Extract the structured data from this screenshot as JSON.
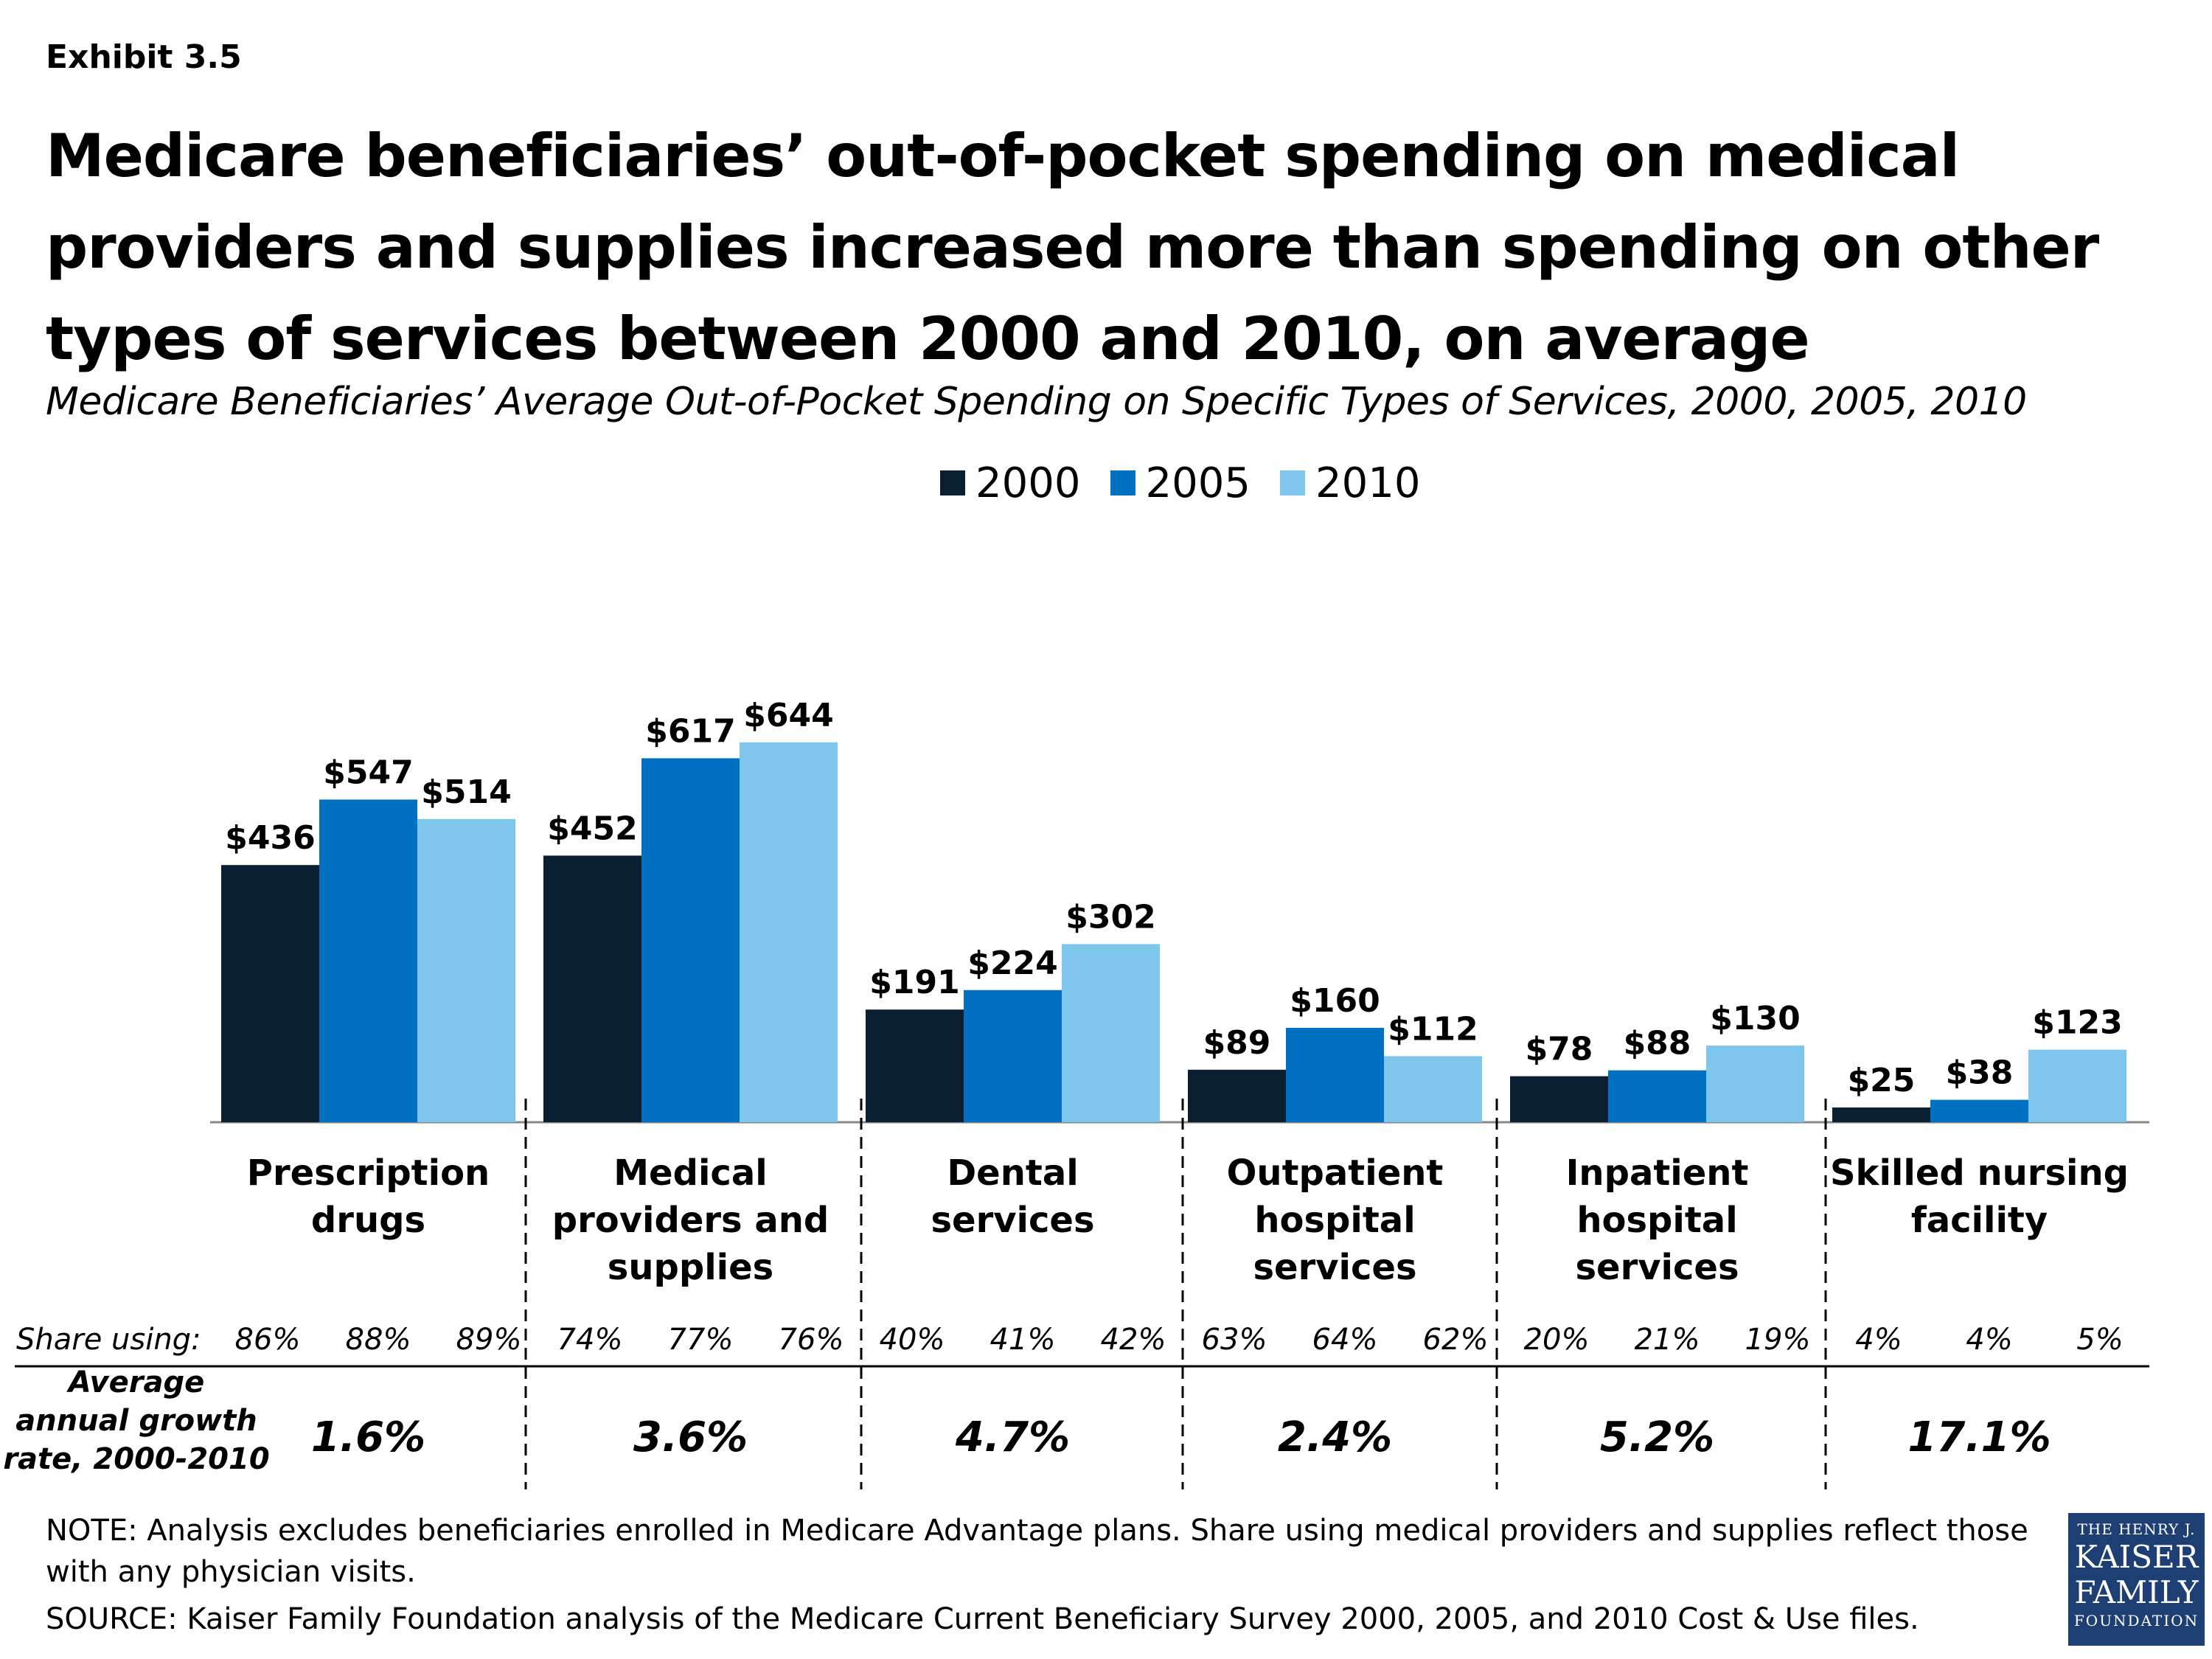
{
  "exhibit": "Exhibit 3.5",
  "title": "Medicare beneficiaries’ out-of-pocket spending on medical providers and supplies increased more than spending on other types of services between 2000 and 2010, on average",
  "subtitle": "Medicare Beneficiaries’ Average Out-of-Pocket Spending on Specific Types of Services, 2000, 2005, 2010",
  "colors": {
    "2000": "#0b1f33",
    "2005": "#0070c0",
    "2010": "#7fc6ec"
  },
  "chart_data": {
    "type": "bar",
    "categories": [
      "Prescription drugs",
      "Medical providers and supplies",
      "Dental services",
      "Outpatient hospital services",
      "Inpatient hospital services",
      "Skilled nursing facility"
    ],
    "series": [
      {
        "name": "2000",
        "values": [
          436,
          452,
          191,
          89,
          78,
          25
        ],
        "labels": [
          "$436",
          "$452",
          "$191",
          "$89",
          "$78",
          "$25"
        ]
      },
      {
        "name": "2005",
        "values": [
          547,
          617,
          224,
          160,
          88,
          38
        ],
        "labels": [
          "$547",
          "$617",
          "$224",
          "$160",
          "$88",
          "$38"
        ]
      },
      {
        "name": "2010",
        "values": [
          514,
          644,
          302,
          112,
          130,
          123
        ],
        "labels": [
          "$514",
          "$644",
          "$302",
          "$112",
          "$130",
          "$123"
        ]
      }
    ],
    "ylim": [
      0,
      700
    ],
    "legend_position": "top-center",
    "grid": false
  },
  "category_labels": [
    [
      "Prescription",
      "drugs"
    ],
    [
      "Medical",
      "providers and",
      "supplies"
    ],
    [
      "Dental",
      "services"
    ],
    [
      "Outpatient",
      "hospital",
      "services"
    ],
    [
      "Inpatient",
      "hospital",
      "services"
    ],
    [
      "Skilled nursing",
      "facility"
    ]
  ],
  "share_using_label": "Share using:",
  "share_using": [
    [
      "86%",
      "88%",
      "89%"
    ],
    [
      "74%",
      "77%",
      "76%"
    ],
    [
      "40%",
      "41%",
      "42%"
    ],
    [
      "63%",
      "64%",
      "62%"
    ],
    [
      "20%",
      "21%",
      "19%"
    ],
    [
      "4%",
      "4%",
      "5%"
    ]
  ],
  "growth_label": [
    "Average",
    "annual growth",
    "rate, 2000-2010"
  ],
  "growth_rates": [
    "1.6%",
    "3.6%",
    "4.7%",
    "2.4%",
    "5.2%",
    "17.1%"
  ],
  "note": "NOTE: Analysis excludes beneficiaries enrolled in Medicare Advantage plans. Share using medical providers and supplies reflect those with any physician visits.",
  "source": "SOURCE: Kaiser Family Foundation analysis of the Medicare Current Beneficiary Survey 2000, 2005, and 2010 Cost & Use files.",
  "logo": {
    "line1": "THE HENRY J.",
    "line2": "KAISER",
    "line3": "FAMILY",
    "line4": "FOUNDATION"
  }
}
